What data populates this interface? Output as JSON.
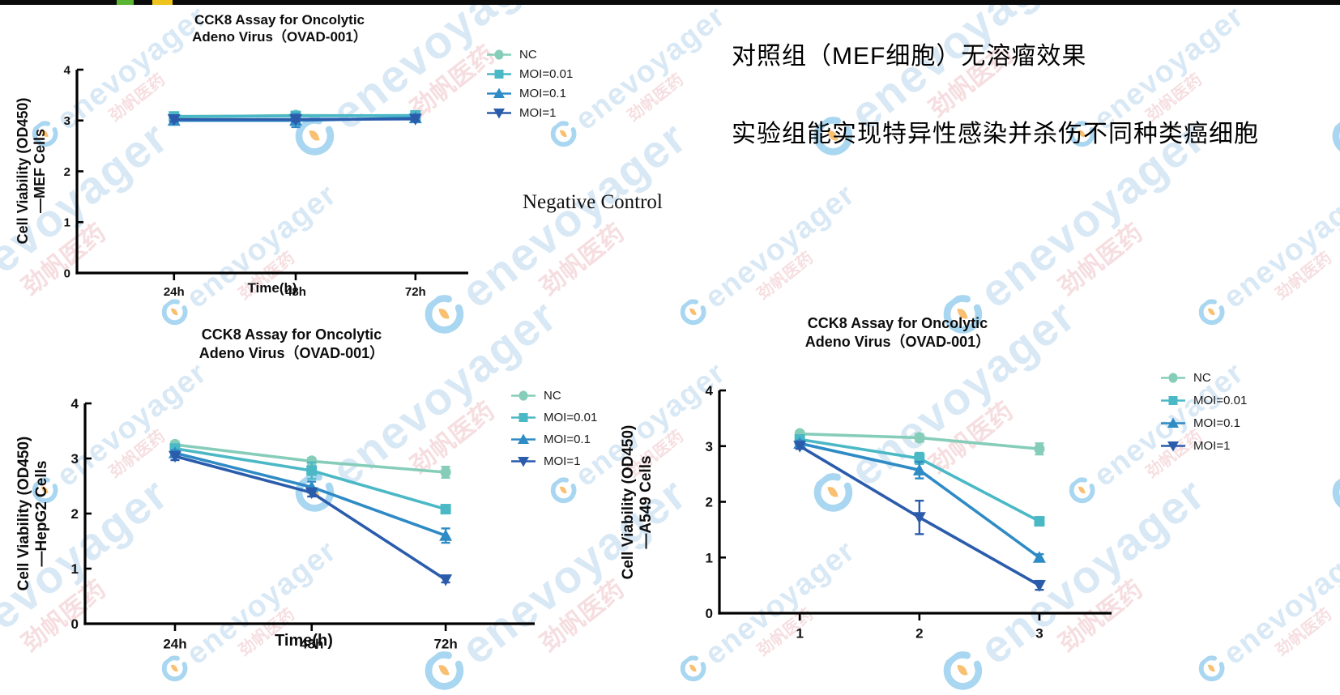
{
  "top_bar": {
    "bar_color": "#0b0b0b",
    "accent_green": "#5ab331",
    "accent_yellow": "#eec31c"
  },
  "watermark": {
    "brand_text": "enevoyager",
    "cn_text": "劲帆医药",
    "brand_color": "#d8e8f5",
    "cn_color": "#f6dee0",
    "logo_blue": "#a9d6f0",
    "logo_orange": "#f8c070"
  },
  "annotations": {
    "control_note": "对照组（MEF细胞）无溶瘤效果",
    "experiment_note": "实验组能实现特异性感染并杀伤不同种类癌细胞",
    "negative_control_label": "Negative Control"
  },
  "chart_data": [
    {
      "type": "line",
      "title": "CCK8 Assay for Oncolytic\nAdeno Virus（OVAD-001）",
      "ylabel": "Cell Viability (OD450)\n—MEF Cells",
      "xlabel": "Time(h)",
      "categories": [
        "24h",
        "48h",
        "72h"
      ],
      "ylim": [
        0,
        4
      ],
      "yticks": [
        0,
        1,
        2,
        3,
        4
      ],
      "grid": false,
      "legend_position": "right",
      "series": [
        {
          "name": "NC",
          "marker": "circle",
          "color": "#86CDB9",
          "values": [
            3.07,
            3.1,
            3.09
          ],
          "errors": [
            0.04,
            0.06,
            0.04
          ]
        },
        {
          "name": "MOI=0.01",
          "marker": "square",
          "color": "#4BB8C6",
          "values": [
            3.08,
            3.09,
            3.1
          ],
          "errors": [
            0.05,
            0.08,
            0.06
          ]
        },
        {
          "name": "MOI=0.1",
          "marker": "triangle-up",
          "color": "#2E8BC5",
          "values": [
            3.0,
            3.0,
            3.05
          ],
          "errors": [
            0.05,
            0.13,
            0.04
          ]
        },
        {
          "name": "MOI=1",
          "marker": "triangle-down",
          "color": "#2B5CAC",
          "values": [
            3.02,
            3.02,
            3.03
          ],
          "errors": [
            0.04,
            0.04,
            0.04
          ]
        }
      ]
    },
    {
      "type": "line",
      "title": "CCK8 Assay for Oncolytic\nAdeno Virus（OVAD-001）",
      "ylabel": "Cell Viability (OD450)\n—HepG2 Cells",
      "xlabel": "Time(h)",
      "categories": [
        "24h",
        "48h",
        "72h"
      ],
      "ylim": [
        0,
        4
      ],
      "yticks": [
        0,
        1,
        2,
        3,
        4
      ],
      "grid": false,
      "legend_position": "right",
      "series": [
        {
          "name": "NC",
          "marker": "circle",
          "color": "#86CDB9",
          "values": [
            3.25,
            2.95,
            2.75
          ],
          "errors": [
            0.06,
            0.06,
            0.1
          ]
        },
        {
          "name": "MOI=0.01",
          "marker": "square",
          "color": "#4BB8C6",
          "values": [
            3.18,
            2.78,
            2.08
          ],
          "errors": [
            0.05,
            0.15,
            0.05
          ]
        },
        {
          "name": "MOI=0.1",
          "marker": "triangle-up",
          "color": "#2E8BC5",
          "values": [
            3.1,
            2.48,
            1.6
          ],
          "errors": [
            0.05,
            0.1,
            0.13
          ]
        },
        {
          "name": "MOI=1",
          "marker": "triangle-down",
          "color": "#2B5CAC",
          "values": [
            3.04,
            2.38,
            0.8
          ],
          "errors": [
            0.07,
            0.07,
            0.05
          ]
        }
      ]
    },
    {
      "type": "line",
      "title": "CCK8 Assay for Oncolytic\nAdeno Virus（OVAD-001）",
      "ylabel": "Cell Viability (OD450)\n—A549 Cells",
      "xlabel": "",
      "categories": [
        "1",
        "2",
        "3"
      ],
      "ylim": [
        0,
        4
      ],
      "yticks": [
        0,
        1,
        2,
        3,
        4
      ],
      "grid": false,
      "legend_position": "right",
      "series": [
        {
          "name": "NC",
          "marker": "circle",
          "color": "#86CDB9",
          "values": [
            3.22,
            3.15,
            2.95
          ],
          "errors": [
            0.05,
            0.07,
            0.1
          ]
        },
        {
          "name": "MOI=0.01",
          "marker": "square",
          "color": "#4BB8C6",
          "values": [
            3.12,
            2.78,
            1.65
          ],
          "errors": [
            0.05,
            0.1,
            0.06
          ]
        },
        {
          "name": "MOI=0.1",
          "marker": "triangle-up",
          "color": "#2E8BC5",
          "values": [
            3.05,
            2.57,
            1.0
          ],
          "errors": [
            0.05,
            0.15,
            0.06
          ]
        },
        {
          "name": "MOI=1",
          "marker": "triangle-down",
          "color": "#2B5CAC",
          "values": [
            3.0,
            1.72,
            0.5
          ],
          "errors": [
            0.05,
            0.3,
            0.08
          ]
        }
      ]
    }
  ]
}
